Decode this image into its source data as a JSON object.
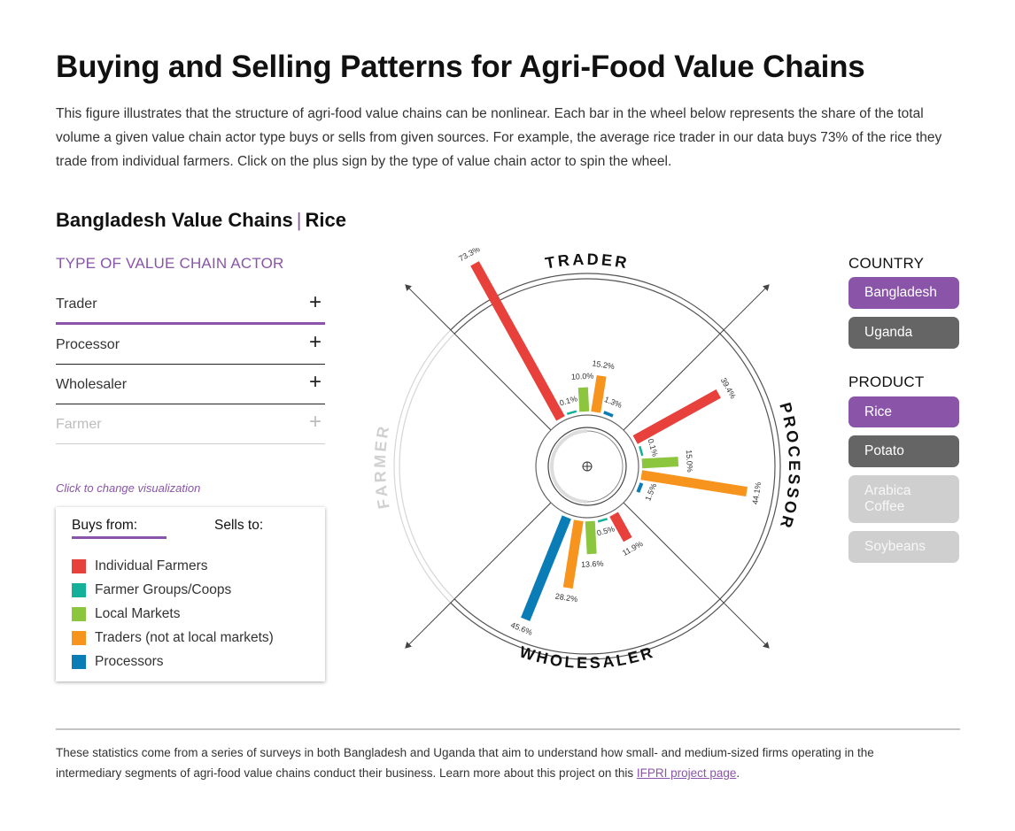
{
  "title": "Buying and Selling Patterns for Agri-Food Value Chains",
  "intro": "This figure illustrates that the structure of agri-food value chains can be nonlinear. Each bar in the wheel below represents the share of the total volume a given value chain actor type buys or sells from given sources. For example, the average rice trader in our data buys 73% of the rice they trade from individual farmers. Click on the plus sign by the type of value chain actor to spin the wheel.",
  "subtitle": {
    "country": "Bangladesh Value Chains",
    "separator": "|",
    "product": "Rice"
  },
  "actor_panel": {
    "heading": "TYPE OF VALUE CHAIN ACTOR",
    "items": [
      {
        "label": "Trader",
        "icon": "plus-icon",
        "state": "active"
      },
      {
        "label": "Processor",
        "icon": "plus-icon",
        "state": "normal"
      },
      {
        "label": "Wholesaler",
        "icon": "plus-icon",
        "state": "normal"
      },
      {
        "label": "Farmer",
        "icon": "plus-icon",
        "state": "disabled"
      }
    ],
    "plus_glyph": "+"
  },
  "hint": "Click to change visualization",
  "legend": {
    "tabs": {
      "buys": "Buys from:",
      "sells": "Sells to:",
      "active": "buys"
    },
    "items": [
      {
        "label": "Individual Farmers",
        "color": "#e8403a"
      },
      {
        "label": "Farmer Groups/Coops",
        "color": "#14b09a"
      },
      {
        "label": "Local Markets",
        "color": "#8cc63f"
      },
      {
        "label": "Traders (not at local markets)",
        "color": "#f7941d"
      },
      {
        "label": "Processors",
        "color": "#0a7db6"
      }
    ]
  },
  "wheel": {
    "labels": {
      "trader": "TRADER",
      "processor": "PROCESSOR",
      "wholesaler": "WHOLESALER",
      "farmer": "FARMER"
    },
    "groups": [
      {
        "actor": "Trader",
        "bars": [
          {
            "source": "Individual Farmers",
            "value": 73.3,
            "label": "73.3%"
          },
          {
            "source": "Farmer Groups/Coops",
            "value": 0.1,
            "label": "0.1%"
          },
          {
            "source": "Local Markets",
            "value": 10.0,
            "label": "10.0%"
          },
          {
            "source": "Traders (not at local markets)",
            "value": 15.2,
            "label": "15.2%"
          },
          {
            "source": "Processors",
            "value": 1.3,
            "label": "1.3%"
          }
        ]
      },
      {
        "actor": "Processor",
        "bars": [
          {
            "source": "Individual Farmers",
            "value": 39.4,
            "label": "39.4%"
          },
          {
            "source": "Farmer Groups/Coops",
            "value": 0.1,
            "label": "0.1%"
          },
          {
            "source": "Local Markets",
            "value": 15.0,
            "label": "15.0%"
          },
          {
            "source": "Traders (not at local markets)",
            "value": 44.1,
            "label": "44.1%"
          },
          {
            "source": "Processors",
            "value": 1.5,
            "label": "1.5%"
          }
        ]
      },
      {
        "actor": "Wholesaler",
        "bars": [
          {
            "source": "Individual Farmers",
            "value": 11.9,
            "label": "11.9%"
          },
          {
            "source": "Farmer Groups/Coops",
            "value": 0.5,
            "label": "0.5%"
          },
          {
            "source": "Local Markets",
            "value": 13.6,
            "label": "13.6%"
          },
          {
            "source": "Traders (not at local markets)",
            "value": 28.2,
            "label": "28.2%"
          },
          {
            "source": "Processors",
            "value": 45.6,
            "label": "45.6%"
          }
        ]
      }
    ]
  },
  "country": {
    "heading": "COUNTRY",
    "options": [
      {
        "label": "Bangladesh",
        "state": "active"
      },
      {
        "label": "Uganda",
        "state": "normal"
      }
    ]
  },
  "product": {
    "heading": "PRODUCT",
    "options": [
      {
        "label": "Rice",
        "state": "active"
      },
      {
        "label": "Potato",
        "state": "normal"
      },
      {
        "label": "Arabica Coffee",
        "state": "disabled"
      },
      {
        "label": "Soybeans",
        "state": "disabled"
      }
    ]
  },
  "footer": {
    "text": "These statistics come from a series of surveys in both Bangladesh and Uganda that aim to understand how small- and medium-sized firms operating in the intermediary segments of agri-food value chains conduct their business. Learn more about this project on this ",
    "link_text": "IFPRI project page",
    "end": "."
  }
}
